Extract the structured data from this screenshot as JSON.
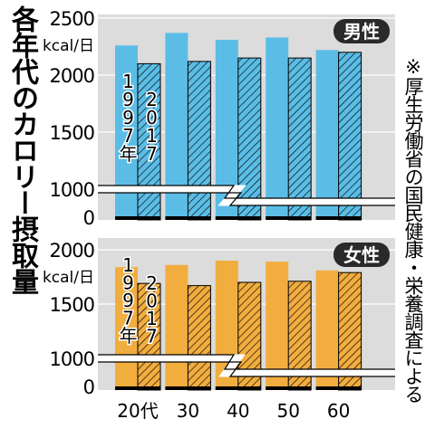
{
  "title": "各年代のカロリー摂取量",
  "note": "※厚生労働省の国民健康・栄養調査による",
  "colors": {
    "male": "#5bbde6",
    "female": "#f2ad3f",
    "plot_bg": "#dcdcdc",
    "badge_bg": "#2a2a2a",
    "hatch": "#000000"
  },
  "chart_data": [
    {
      "type": "bar",
      "panel": "男性",
      "unit": "kcal/日",
      "categories": [
        "20代",
        "30",
        "40",
        "50",
        "60"
      ],
      "series": [
        {
          "name": "1997年",
          "values": [
            2260,
            2370,
            2310,
            2330,
            2220
          ]
        },
        {
          "name": "2017",
          "values": [
            2100,
            2120,
            2150,
            2150,
            2200
          ]
        }
      ],
      "yticks": [
        0,
        1000,
        1500,
        2000,
        2500
      ],
      "ylim": [
        0,
        2500
      ],
      "axis_break": [
        0,
        1000
      ],
      "legend_labels": [
        "1997年",
        "2017"
      ]
    },
    {
      "type": "bar",
      "panel": "女性",
      "unit": "kcal/日",
      "categories": [
        "20代",
        "30",
        "40",
        "50",
        "60"
      ],
      "series": [
        {
          "name": "1997年",
          "values": [
            1840,
            1860,
            1900,
            1890,
            1810
          ]
        },
        {
          "name": "2017",
          "values": [
            1690,
            1670,
            1700,
            1710,
            1790
          ]
        }
      ],
      "yticks": [
        0,
        1000,
        1500,
        2000
      ],
      "ylim": [
        0,
        2000
      ],
      "axis_break": [
        0,
        1000
      ],
      "legend_labels": [
        "1997年",
        "2017"
      ]
    }
  ]
}
